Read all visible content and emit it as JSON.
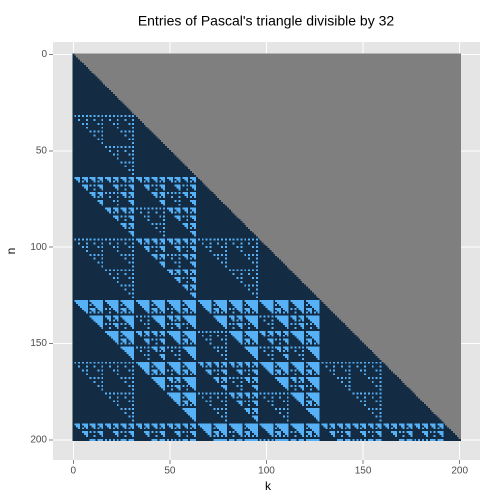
{
  "chart_data": {
    "type": "tile",
    "title": "Entries of Pascal's triangle divisible by 32",
    "x_label": "k",
    "y_label": "n",
    "modulus": 32,
    "n_range": [
      0,
      200
    ],
    "colors": {
      "divisible": "#56b1f7",
      "not_divisible": "#132b43",
      "outside": "#7f7f7f"
    },
    "xlim": [
      -10.5,
      210.5
    ],
    "ylim": [
      210.5,
      -6.5
    ],
    "xticks": [
      0,
      50,
      100,
      150,
      200
    ],
    "yticks": [
      0,
      50,
      100,
      150,
      200
    ],
    "grid": true
  }
}
